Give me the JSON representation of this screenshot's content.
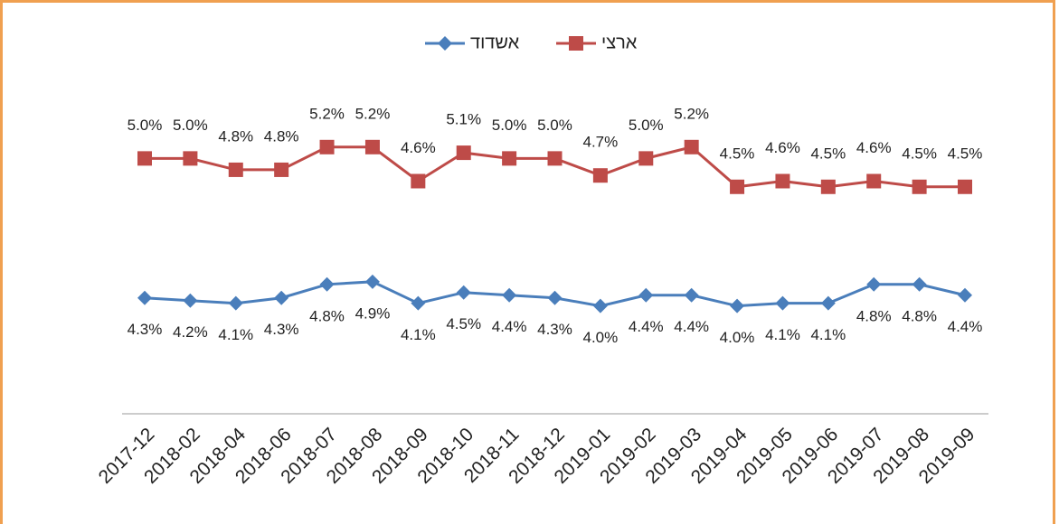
{
  "chart_data": {
    "type": "line",
    "categories": [
      "2017-12",
      "2018-02",
      "2018-04",
      "2018-06",
      "2018-07",
      "2018-08",
      "2018-09",
      "2018-10",
      "2018-11",
      "2018-12",
      "2019-01",
      "2019-02",
      "2019-03",
      "2019-04",
      "2019-05",
      "2019-06",
      "2019-07",
      "2019-08",
      "2019-09"
    ],
    "ylim": [
      0,
      12
    ],
    "y2lim": [
      0.5,
      6.2
    ],
    "series": [
      {
        "name": "אשדוד",
        "color": "#4a7ebb",
        "marker": "diamond",
        "label_position": "below",
        "values": [
          4.3,
          4.2,
          4.1,
          4.3,
          4.8,
          4.9,
          4.1,
          4.5,
          4.4,
          4.3,
          4.0,
          4.4,
          4.4,
          4.0,
          4.1,
          4.1,
          4.8,
          4.8,
          4.4
        ],
        "value_labels": [
          "4.3%",
          "4.2%",
          "4.1%",
          "4.3%",
          "4.8%",
          "4.9%",
          "4.1%",
          "4.5%",
          "4.4%",
          "4.3%",
          "4.0%",
          "4.4%",
          "4.4%",
          "4.0%",
          "4.1%",
          "4.1%",
          "4.8%",
          "4.8%",
          "4.4%"
        ]
      },
      {
        "name": "ארצי",
        "color": "#be4b48",
        "marker": "square",
        "axis": "y2",
        "label_position": "above",
        "values": [
          5.0,
          5.0,
          4.8,
          4.8,
          5.2,
          5.2,
          4.6,
          5.1,
          5.0,
          5.0,
          4.7,
          5.0,
          5.2,
          4.5,
          4.6,
          4.5,
          4.6,
          4.5,
          4.5
        ],
        "value_labels": [
          "5.0%",
          "5.0%",
          "4.8%",
          "4.8%",
          "5.2%",
          "5.2%",
          "4.6%",
          "5.1%",
          "5.0%",
          "5.0%",
          "4.7%",
          "5.0%",
          "5.2%",
          "4.5%",
          "4.6%",
          "4.5%",
          "4.6%",
          "4.5%",
          "4.5%"
        ]
      }
    ]
  }
}
